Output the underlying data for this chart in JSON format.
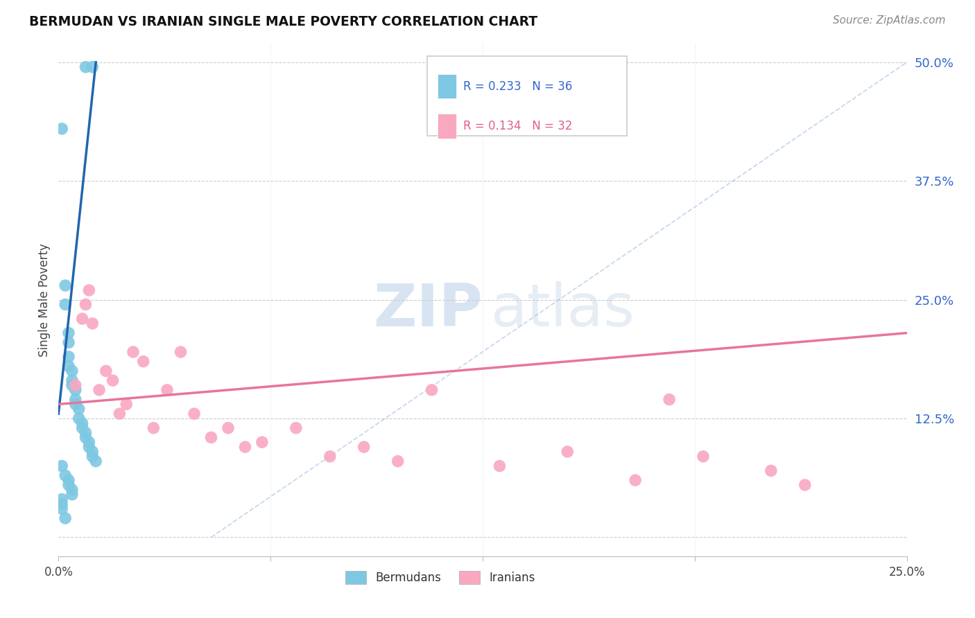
{
  "title": "BERMUDAN VS IRANIAN SINGLE MALE POVERTY CORRELATION CHART",
  "source": "Source: ZipAtlas.com",
  "ylabel": "Single Male Poverty",
  "xlim": [
    0.0,
    0.25
  ],
  "ylim": [
    -0.02,
    0.52
  ],
  "ytick_values": [
    0.0,
    0.125,
    0.25,
    0.375,
    0.5
  ],
  "xtick_values": [
    0.0,
    0.0625,
    0.125,
    0.1875,
    0.25
  ],
  "xtick_labels": [
    "0.0%",
    "",
    "",
    "",
    "25.0%"
  ],
  "bermudan_R": 0.233,
  "bermudan_N": 36,
  "iranian_R": 0.134,
  "iranian_N": 32,
  "bermudan_color": "#7ec8e3",
  "iranian_color": "#f9a8c0",
  "bermudan_line_color": "#2166ac",
  "iranian_line_color": "#e8759a",
  "diag_line_color": "#aec8e8",
  "watermark_zip": "ZIP",
  "watermark_atlas": "atlas",
  "bermudan_x": [
    0.008,
    0.01,
    0.001,
    0.002,
    0.002,
    0.003,
    0.003,
    0.003,
    0.003,
    0.004,
    0.004,
    0.004,
    0.005,
    0.005,
    0.005,
    0.006,
    0.006,
    0.007,
    0.007,
    0.008,
    0.008,
    0.009,
    0.009,
    0.01,
    0.01,
    0.011,
    0.001,
    0.002,
    0.003,
    0.003,
    0.004,
    0.004,
    0.001,
    0.001,
    0.001,
    0.002
  ],
  "bermudan_y": [
    0.495,
    0.495,
    0.43,
    0.265,
    0.245,
    0.215,
    0.205,
    0.19,
    0.18,
    0.175,
    0.165,
    0.16,
    0.155,
    0.145,
    0.14,
    0.135,
    0.125,
    0.12,
    0.115,
    0.11,
    0.105,
    0.1,
    0.095,
    0.09,
    0.085,
    0.08,
    0.075,
    0.065,
    0.06,
    0.055,
    0.05,
    0.045,
    0.04,
    0.035,
    0.03,
    0.02
  ],
  "iranian_x": [
    0.005,
    0.007,
    0.008,
    0.009,
    0.01,
    0.012,
    0.014,
    0.016,
    0.018,
    0.02,
    0.022,
    0.025,
    0.028,
    0.032,
    0.036,
    0.04,
    0.045,
    0.05,
    0.055,
    0.06,
    0.07,
    0.08,
    0.09,
    0.1,
    0.11,
    0.13,
    0.15,
    0.17,
    0.19,
    0.21,
    0.22,
    0.18
  ],
  "iranian_y": [
    0.16,
    0.23,
    0.245,
    0.26,
    0.225,
    0.155,
    0.175,
    0.165,
    0.13,
    0.14,
    0.195,
    0.185,
    0.115,
    0.155,
    0.195,
    0.13,
    0.105,
    0.115,
    0.095,
    0.1,
    0.115,
    0.085,
    0.095,
    0.08,
    0.155,
    0.075,
    0.09,
    0.06,
    0.085,
    0.07,
    0.055,
    0.145
  ],
  "bermudan_line_x": [
    0.0,
    0.011
  ],
  "bermudan_line_y": [
    0.13,
    0.5
  ],
  "iranian_line_x": [
    0.0,
    0.25
  ],
  "iranian_line_y": [
    0.14,
    0.215
  ],
  "diag_line_x": [
    0.045,
    0.25
  ],
  "diag_line_y": [
    0.0,
    0.5
  ]
}
